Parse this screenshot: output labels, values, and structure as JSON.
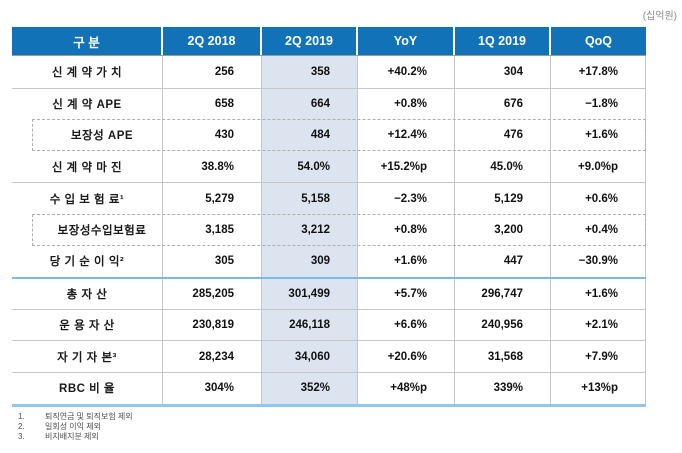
{
  "unit_label": "(십억원)",
  "table": {
    "columns": [
      "구 분",
      "2Q 2018",
      "2Q 2019",
      "YoY",
      "1Q 2019",
      "QoQ"
    ],
    "rows": [
      {
        "label": "신 계 약 가 치",
        "values": [
          "256",
          "358",
          "+40.2%",
          "304",
          "+17.8%"
        ]
      },
      {
        "label": "신 계 약 APE",
        "values": [
          "658",
          "664",
          "+0.8%",
          "676",
          "−1.8%"
        ]
      },
      {
        "label": "보장성 APE",
        "values": [
          "430",
          "484",
          "+12.4%",
          "476",
          "+1.6%"
        ]
      },
      {
        "label": "신 계 약 마 진",
        "values": [
          "38.8%",
          "54.0%",
          "+15.2%p",
          "45.0%",
          "+9.0%p"
        ]
      },
      {
        "label": "수 입 보 험 료¹",
        "values": [
          "5,279",
          "5,158",
          "−2.3%",
          "5,129",
          "+0.6%"
        ]
      },
      {
        "label": "보장성수입보험료",
        "values": [
          "3,185",
          "3,212",
          "+0.8%",
          "3,200",
          "+0.4%"
        ]
      },
      {
        "label": "당 기 순 이 익²",
        "values": [
          "305",
          "309",
          "+1.6%",
          "447",
          "−30.9%"
        ]
      },
      {
        "label": "총 자 산",
        "values": [
          "285,205",
          "301,499",
          "+5.7%",
          "296,747",
          "+1.6%"
        ]
      },
      {
        "label": "운 용 자 산",
        "values": [
          "230,819",
          "246,118",
          "+6.6%",
          "240,956",
          "+2.1%"
        ]
      },
      {
        "label": "자 기 자 본³",
        "values": [
          "28,234",
          "34,060",
          "+20.6%",
          "31,568",
          "+7.9%"
        ]
      },
      {
        "label": "RBC 비 율",
        "values": [
          "304%",
          "352%",
          "+48%p",
          "339%",
          "+13%p"
        ]
      }
    ]
  },
  "footnotes": [
    {
      "marker": "1.",
      "text": "퇴직연금 및 퇴직보험 제외"
    },
    {
      "marker": "2.",
      "text": "일회성 이익 제외"
    },
    {
      "marker": "3.",
      "text": "비지배지분 제외"
    }
  ],
  "colors": {
    "header_blue": "#1172B8",
    "highlight_column": "#DCE4EF",
    "section_divider_blue": "#74BCE6",
    "row_separator_gray": "#C6C6C6"
  }
}
